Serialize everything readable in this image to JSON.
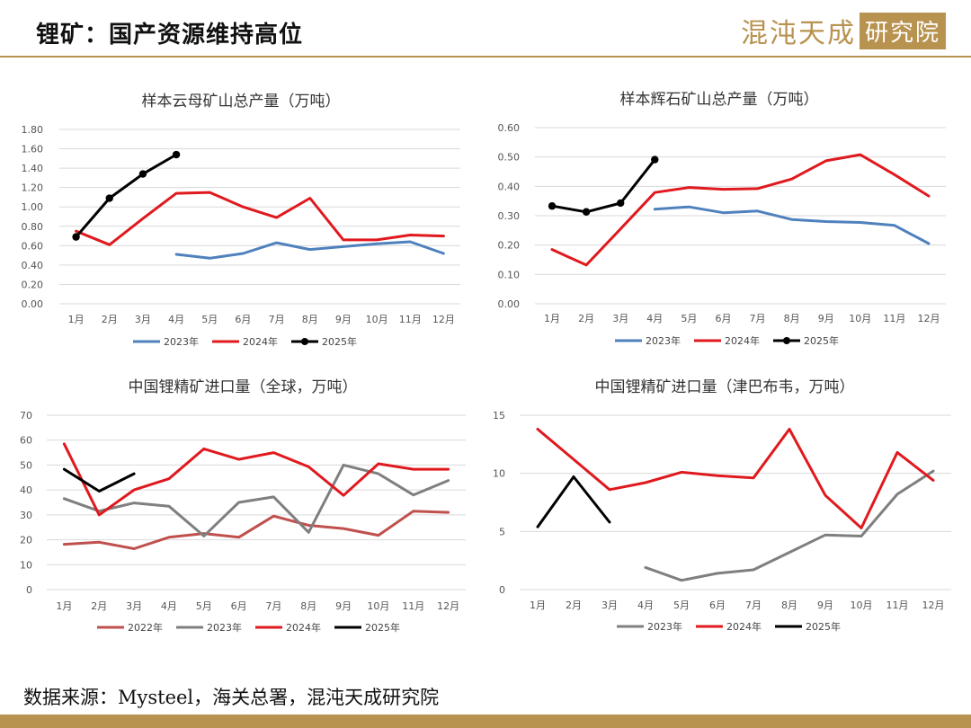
{
  "page": {
    "title": "锂矿：国产资源维持高位",
    "logo_a": "混沌天成",
    "logo_b": "研究院",
    "source": "数据来源：Mysteel，海关总署，混沌天成研究院"
  },
  "colors": {
    "accent": "#b8924f",
    "series_2022": "#c0504d",
    "series_2023_blue": "#4f81bd",
    "series_2023_gray": "#7f7f7f",
    "series_2024": "#e0191e",
    "series_2025": "#000000"
  },
  "chart_data": [
    {
      "type": "line",
      "title": "样本云母矿山总产量（万吨）",
      "categories": [
        "1月",
        "2月",
        "3月",
        "4月",
        "5月",
        "6月",
        "7月",
        "8月",
        "9月",
        "10月",
        "11月",
        "12月"
      ],
      "ylim": [
        0,
        1.8
      ],
      "yticks": [
        "0.00",
        "0.20",
        "0.40",
        "0.60",
        "0.80",
        "1.00",
        "1.20",
        "1.40",
        "1.60",
        "1.80"
      ],
      "grid": true,
      "legend": "bottom",
      "series": [
        {
          "name": "2023年",
          "color": "#4f81bd",
          "markers": false,
          "values": [
            null,
            null,
            null,
            0.51,
            0.47,
            0.52,
            0.63,
            0.56,
            0.59,
            0.62,
            0.64,
            0.52
          ]
        },
        {
          "name": "2024年",
          "color": "#e0191e",
          "markers": false,
          "values": [
            0.75,
            0.61,
            0.88,
            1.14,
            1.15,
            1.0,
            0.89,
            1.09,
            0.66,
            0.66,
            0.71,
            0.7
          ]
        },
        {
          "name": "2025年",
          "color": "#000000",
          "markers": true,
          "values": [
            0.69,
            1.09,
            1.34,
            1.54,
            null,
            null,
            null,
            null,
            null,
            null,
            null,
            null
          ]
        }
      ]
    },
    {
      "type": "line",
      "title": "样本辉石矿山总产量（万吨）",
      "categories": [
        "1月",
        "2月",
        "3月",
        "4月",
        "5月",
        "6月",
        "7月",
        "8月",
        "9月",
        "10月",
        "11月",
        "12月"
      ],
      "ylim": [
        0,
        0.6
      ],
      "yticks": [
        "0.00",
        "0.10",
        "0.20",
        "0.30",
        "0.40",
        "0.50",
        "0.60"
      ],
      "grid": true,
      "legend": "bottom",
      "series": [
        {
          "name": "2023年",
          "color": "#4f81bd",
          "markers": false,
          "values": [
            null,
            null,
            null,
            0.322,
            0.33,
            0.31,
            0.316,
            0.287,
            0.28,
            0.277,
            0.267,
            0.205
          ]
        },
        {
          "name": "2024年",
          "color": "#e0191e",
          "markers": false,
          "values": [
            0.185,
            0.132,
            0.255,
            0.379,
            0.396,
            0.39,
            0.392,
            0.425,
            0.487,
            0.508,
            0.44,
            0.367
          ]
        },
        {
          "name": "2025年",
          "color": "#000000",
          "markers": true,
          "values": [
            0.333,
            0.313,
            0.343,
            0.491,
            null,
            null,
            null,
            null,
            null,
            null,
            null,
            null
          ]
        }
      ]
    },
    {
      "type": "line",
      "title": "中国锂精矿进口量（全球，万吨）",
      "categories": [
        "1月",
        "2月",
        "3月",
        "4月",
        "5月",
        "6月",
        "7月",
        "8月",
        "9月",
        "10月",
        "11月",
        "12月"
      ],
      "ylim": [
        0,
        70
      ],
      "yticks": [
        "0",
        "10",
        "20",
        "30",
        "40",
        "50",
        "60",
        "70"
      ],
      "grid": true,
      "legend": "bottom",
      "series": [
        {
          "name": "2022年",
          "color": "#c0504d",
          "markers": false,
          "values": [
            18.2,
            19.0,
            16.4,
            21.0,
            22.5,
            21.0,
            29.5,
            25.8,
            24.5,
            21.8,
            31.5,
            31.0
          ]
        },
        {
          "name": "2023年",
          "color": "#7f7f7f",
          "markers": false,
          "values": [
            36.5,
            31.5,
            34.8,
            33.5,
            21.5,
            35.0,
            37.2,
            23.0,
            50.0,
            46.5,
            38.0,
            43.8
          ]
        },
        {
          "name": "2024年",
          "color": "#e0191e",
          "markers": false,
          "values": [
            58.5,
            30.0,
            40.0,
            44.5,
            56.5,
            52.3,
            55.0,
            49.3,
            37.8,
            50.5,
            48.3,
            48.3
          ]
        },
        {
          "name": "2025年",
          "color": "#000000",
          "markers": false,
          "values": [
            48.3,
            39.5,
            46.5,
            null,
            null,
            null,
            null,
            null,
            null,
            null,
            null,
            null
          ]
        }
      ]
    },
    {
      "type": "line",
      "title": "中国锂精矿进口量（津巴布韦，万吨）",
      "categories": [
        "1月",
        "2月",
        "3月",
        "4月",
        "5月",
        "6月",
        "7月",
        "8月",
        "9月",
        "10月",
        "11月",
        "12月"
      ],
      "ylim": [
        0,
        15
      ],
      "yticks": [
        "0",
        "5",
        "10",
        "15"
      ],
      "grid": true,
      "legend": "bottom",
      "series": [
        {
          "name": "2023年",
          "color": "#7f7f7f",
          "markers": false,
          "values": [
            null,
            null,
            null,
            1.9,
            0.8,
            1.4,
            1.7,
            3.2,
            4.7,
            4.6,
            8.2,
            10.2
          ]
        },
        {
          "name": "2024年",
          "color": "#e0191e",
          "markers": false,
          "values": [
            13.8,
            11.2,
            8.6,
            9.2,
            10.1,
            9.8,
            9.6,
            13.8,
            8.1,
            5.3,
            11.8,
            9.4
          ]
        },
        {
          "name": "2025年",
          "color": "#000000",
          "markers": false,
          "values": [
            5.4,
            9.7,
            5.8,
            null,
            null,
            null,
            null,
            null,
            null,
            null,
            null,
            null
          ]
        }
      ]
    }
  ]
}
